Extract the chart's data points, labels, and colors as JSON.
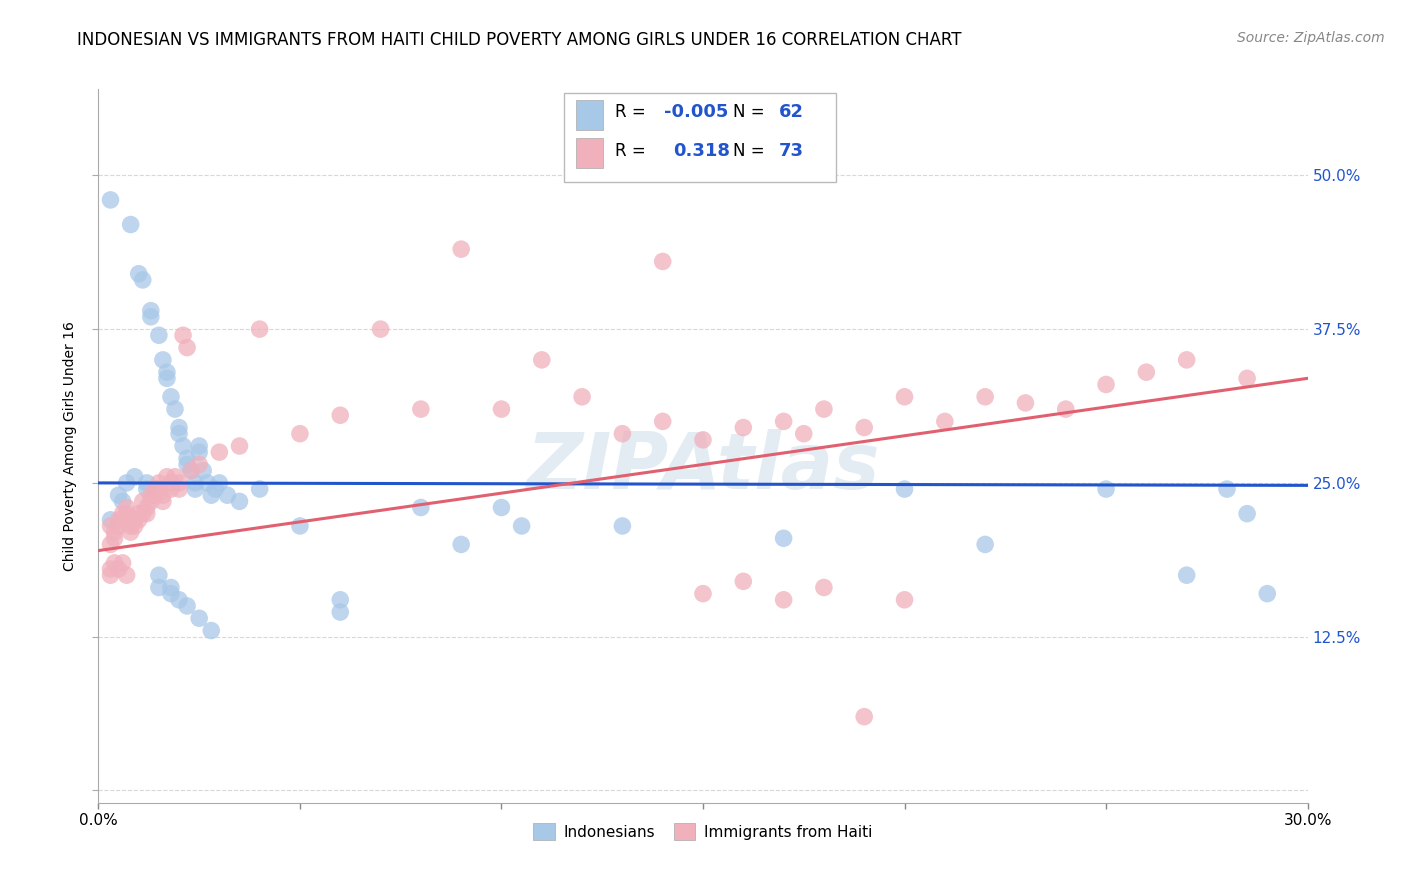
{
  "title": "INDONESIAN VS IMMIGRANTS FROM HAITI CHILD POVERTY AMONG GIRLS UNDER 16 CORRELATION CHART",
  "source": "Source: ZipAtlas.com",
  "ylabel": "Child Poverty Among Girls Under 16",
  "xlim": [
    0.0,
    0.3
  ],
  "ylim": [
    -0.01,
    0.57
  ],
  "x_ticks": [
    0.0,
    0.05,
    0.1,
    0.15,
    0.2,
    0.25,
    0.3
  ],
  "x_tick_labels": [
    "0.0%",
    "",
    "",
    "",
    "",
    "",
    "30.0%"
  ],
  "y_ticks": [
    0.0,
    0.125,
    0.25,
    0.375,
    0.5
  ],
  "y_tick_labels_right": [
    "",
    "12.5%",
    "25.0%",
    "37.5%",
    "50.0%"
  ],
  "indonesian_color": "#a8c8e8",
  "haiti_color": "#f0b0bc",
  "indonesian_line_color": "#2255cc",
  "haiti_line_color": "#e06070",
  "watermark": "ZIPAtlas",
  "background_color": "#ffffff",
  "grid_color": "#d8d8d8",
  "title_fontsize": 12,
  "source_fontsize": 10,
  "axis_label_fontsize": 10,
  "tick_fontsize": 11,
  "indonesian_points": [
    [
      0.003,
      0.48
    ],
    [
      0.008,
      0.46
    ],
    [
      0.01,
      0.42
    ],
    [
      0.011,
      0.415
    ],
    [
      0.013,
      0.39
    ],
    [
      0.013,
      0.385
    ],
    [
      0.015,
      0.37
    ],
    [
      0.016,
      0.35
    ],
    [
      0.017,
      0.34
    ],
    [
      0.017,
      0.335
    ],
    [
      0.018,
      0.32
    ],
    [
      0.019,
      0.31
    ],
    [
      0.02,
      0.295
    ],
    [
      0.02,
      0.29
    ],
    [
      0.021,
      0.28
    ],
    [
      0.022,
      0.27
    ],
    [
      0.022,
      0.265
    ],
    [
      0.023,
      0.26
    ],
    [
      0.024,
      0.25
    ],
    [
      0.024,
      0.245
    ],
    [
      0.025,
      0.28
    ],
    [
      0.025,
      0.275
    ],
    [
      0.026,
      0.26
    ],
    [
      0.027,
      0.25
    ],
    [
      0.028,
      0.24
    ],
    [
      0.029,
      0.245
    ],
    [
      0.03,
      0.25
    ],
    [
      0.032,
      0.24
    ],
    [
      0.035,
      0.235
    ],
    [
      0.04,
      0.245
    ],
    [
      0.012,
      0.25
    ],
    [
      0.012,
      0.245
    ],
    [
      0.015,
      0.175
    ],
    [
      0.015,
      0.165
    ],
    [
      0.018,
      0.165
    ],
    [
      0.018,
      0.16
    ],
    [
      0.02,
      0.155
    ],
    [
      0.022,
      0.15
    ],
    [
      0.025,
      0.14
    ],
    [
      0.028,
      0.13
    ],
    [
      0.05,
      0.215
    ],
    [
      0.06,
      0.155
    ],
    [
      0.06,
      0.145
    ],
    [
      0.08,
      0.23
    ],
    [
      0.09,
      0.2
    ],
    [
      0.1,
      0.23
    ],
    [
      0.105,
      0.215
    ],
    [
      0.13,
      0.215
    ],
    [
      0.17,
      0.205
    ],
    [
      0.2,
      0.245
    ],
    [
      0.22,
      0.2
    ],
    [
      0.25,
      0.245
    ],
    [
      0.27,
      0.175
    ],
    [
      0.28,
      0.245
    ],
    [
      0.285,
      0.225
    ],
    [
      0.29,
      0.16
    ],
    [
      0.005,
      0.24
    ],
    [
      0.006,
      0.235
    ],
    [
      0.007,
      0.25
    ],
    [
      0.009,
      0.255
    ],
    [
      0.003,
      0.22
    ]
  ],
  "haiti_points": [
    [
      0.003,
      0.215
    ],
    [
      0.003,
      0.2
    ],
    [
      0.004,
      0.21
    ],
    [
      0.004,
      0.205
    ],
    [
      0.005,
      0.22
    ],
    [
      0.005,
      0.215
    ],
    [
      0.006,
      0.225
    ],
    [
      0.006,
      0.22
    ],
    [
      0.007,
      0.23
    ],
    [
      0.007,
      0.225
    ],
    [
      0.008,
      0.215
    ],
    [
      0.008,
      0.21
    ],
    [
      0.009,
      0.22
    ],
    [
      0.009,
      0.215
    ],
    [
      0.01,
      0.225
    ],
    [
      0.01,
      0.22
    ],
    [
      0.011,
      0.235
    ],
    [
      0.011,
      0.225
    ],
    [
      0.012,
      0.23
    ],
    [
      0.012,
      0.225
    ],
    [
      0.013,
      0.24
    ],
    [
      0.013,
      0.235
    ],
    [
      0.014,
      0.245
    ],
    [
      0.014,
      0.24
    ],
    [
      0.015,
      0.25
    ],
    [
      0.015,
      0.245
    ],
    [
      0.016,
      0.24
    ],
    [
      0.016,
      0.235
    ],
    [
      0.017,
      0.255
    ],
    [
      0.018,
      0.25
    ],
    [
      0.018,
      0.245
    ],
    [
      0.019,
      0.255
    ],
    [
      0.02,
      0.25
    ],
    [
      0.02,
      0.245
    ],
    [
      0.021,
      0.37
    ],
    [
      0.022,
      0.36
    ],
    [
      0.023,
      0.26
    ],
    [
      0.025,
      0.265
    ],
    [
      0.03,
      0.275
    ],
    [
      0.035,
      0.28
    ],
    [
      0.04,
      0.375
    ],
    [
      0.05,
      0.29
    ],
    [
      0.06,
      0.305
    ],
    [
      0.07,
      0.375
    ],
    [
      0.08,
      0.31
    ],
    [
      0.09,
      0.44
    ],
    [
      0.1,
      0.31
    ],
    [
      0.11,
      0.35
    ],
    [
      0.12,
      0.32
    ],
    [
      0.13,
      0.29
    ],
    [
      0.14,
      0.3
    ],
    [
      0.15,
      0.285
    ],
    [
      0.16,
      0.295
    ],
    [
      0.17,
      0.3
    ],
    [
      0.175,
      0.29
    ],
    [
      0.18,
      0.31
    ],
    [
      0.19,
      0.295
    ],
    [
      0.2,
      0.32
    ],
    [
      0.21,
      0.3
    ],
    [
      0.22,
      0.32
    ],
    [
      0.23,
      0.315
    ],
    [
      0.24,
      0.31
    ],
    [
      0.25,
      0.33
    ],
    [
      0.26,
      0.34
    ],
    [
      0.27,
      0.35
    ],
    [
      0.285,
      0.335
    ],
    [
      0.003,
      0.18
    ],
    [
      0.003,
      0.175
    ],
    [
      0.004,
      0.185
    ],
    [
      0.005,
      0.18
    ],
    [
      0.006,
      0.185
    ],
    [
      0.007,
      0.175
    ],
    [
      0.15,
      0.16
    ],
    [
      0.16,
      0.17
    ],
    [
      0.17,
      0.155
    ],
    [
      0.18,
      0.165
    ],
    [
      0.19,
      0.06
    ],
    [
      0.2,
      0.155
    ],
    [
      0.14,
      0.43
    ]
  ],
  "indonesian_line": {
    "x0": 0.0,
    "y0": 0.25,
    "x1": 0.3,
    "y1": 0.248
  },
  "haiti_line": {
    "x0": 0.0,
    "y0": 0.195,
    "x1": 0.3,
    "y1": 0.335
  }
}
